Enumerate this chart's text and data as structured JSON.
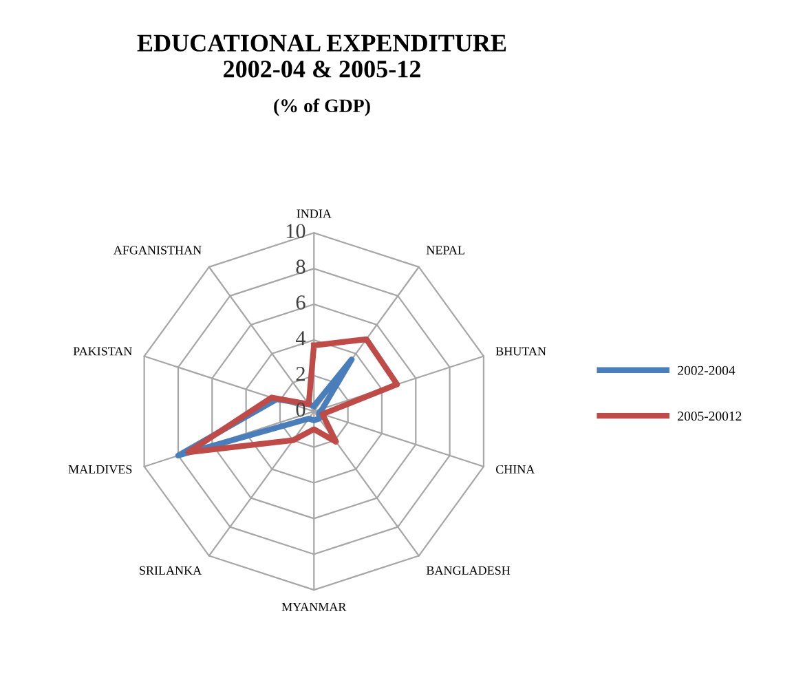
{
  "chart_data": {
    "type": "radar",
    "title": "EDUCATIONAL EXPENDITURE\n2002-04 & 2005-12",
    "subtitle": "(% of GDP)",
    "categories": [
      "INDIA",
      "NEPAL",
      "BHUTAN",
      "CHINA",
      "BANGLADESH",
      "MYANMAR",
      "SRILANKA",
      "MALDIVES",
      "PAKISTAN",
      "AFGANISTHAN"
    ],
    "series": [
      {
        "name": "2002-2004",
        "color": "#4a7ebb",
        "values": [
          0.3,
          3.6,
          0.5,
          0.3,
          0.5,
          0.5,
          0.5,
          8.0,
          2.2,
          0.5
        ]
      },
      {
        "name": "2005-20012",
        "color": "#be4b48",
        "values": [
          3.7,
          5.0,
          4.9,
          0.5,
          2.1,
          1.0,
          2.0,
          7.4,
          2.5,
          0.5
        ]
      }
    ],
    "ylim": [
      0,
      10
    ],
    "yticks": [
      0,
      2,
      4,
      6,
      8,
      10
    ],
    "grid": true,
    "legend": "right",
    "marker": "none",
    "line_style": "solid"
  }
}
